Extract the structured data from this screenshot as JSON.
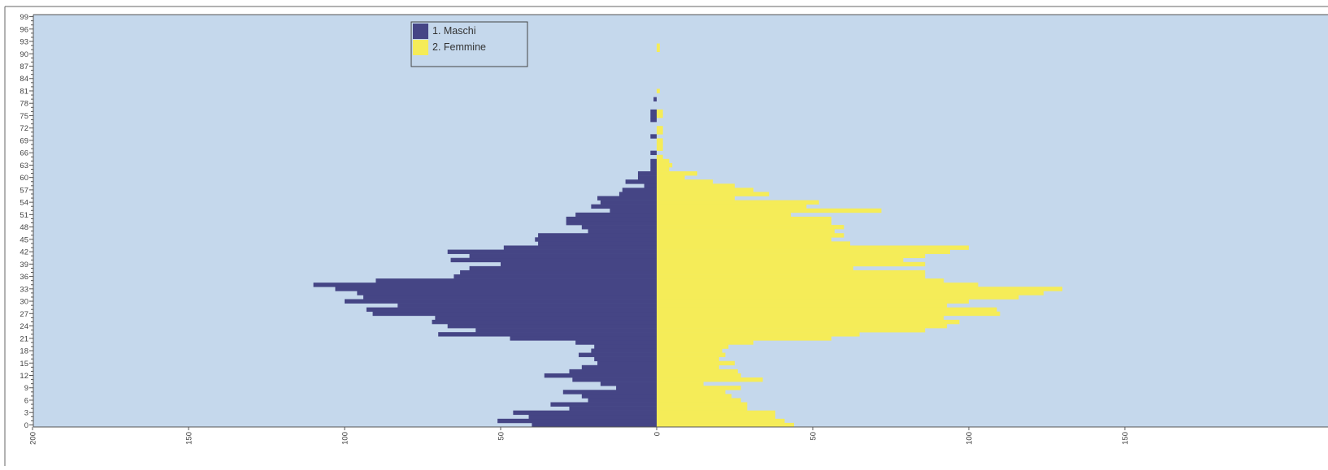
{
  "chart_data": {
    "type": "bar",
    "orientation": "horizontal",
    "layout": "population-pyramid",
    "title": "",
    "xlabel": "",
    "ylabel": "",
    "xlim": [
      -200,
      200
    ],
    "ylim": [
      0,
      100
    ],
    "grid": false,
    "legend_position": "top-left",
    "colors": {
      "plot_background": "#c5d8ec",
      "frame": "#555555",
      "males": "#454585",
      "females": "#f5ec58"
    },
    "x_ticks": [
      {
        "value": -200,
        "label": "200"
      },
      {
        "value": -150,
        "label": "150"
      },
      {
        "value": -100,
        "label": "100"
      },
      {
        "value": -50,
        "label": "50"
      },
      {
        "value": 0,
        "label": "0"
      },
      {
        "value": 50,
        "label": "50"
      },
      {
        "value": 100,
        "label": "100"
      },
      {
        "value": 150,
        "label": "150"
      }
    ],
    "y_ticks": [
      "0",
      "3",
      "6",
      "9",
      "12",
      "15",
      "18",
      "21",
      "24",
      "27",
      "30",
      "33",
      "36",
      "39",
      "42",
      "45",
      "48",
      "51",
      "54",
      "57",
      "60",
      "63",
      "66",
      "69",
      "72",
      "75",
      "78",
      "81",
      "84",
      "87",
      "90",
      "93",
      "96",
      "99"
    ],
    "ages": [
      0,
      1,
      2,
      3,
      4,
      5,
      6,
      7,
      8,
      9,
      10,
      11,
      12,
      13,
      14,
      15,
      16,
      17,
      18,
      19,
      20,
      21,
      22,
      23,
      24,
      25,
      26,
      27,
      28,
      29,
      30,
      31,
      32,
      33,
      34,
      35,
      36,
      37,
      38,
      39,
      40,
      41,
      42,
      43,
      44,
      45,
      46,
      47,
      48,
      49,
      50,
      51,
      52,
      53,
      54,
      55,
      56,
      57,
      58,
      59,
      60,
      61,
      62,
      63,
      64,
      65,
      66,
      67,
      68,
      69,
      70,
      71,
      72,
      73,
      74,
      75,
      76,
      77,
      78,
      79,
      80,
      81,
      82,
      83,
      84,
      85,
      86,
      87,
      88,
      89,
      90,
      91,
      92,
      93,
      94,
      95,
      96,
      97,
      98,
      99
    ],
    "series": [
      {
        "name": "1. Maschi",
        "values": [
          40,
          51,
          41,
          46,
          28,
          34,
          22,
          24,
          30,
          13,
          18,
          27,
          36,
          28,
          24,
          19,
          20,
          25,
          21,
          20,
          26,
          47,
          70,
          58,
          67,
          72,
          71,
          91,
          93,
          83,
          100,
          94,
          96,
          103,
          110,
          90,
          65,
          63,
          60,
          50,
          66,
          60,
          67,
          49,
          38,
          39,
          38,
          22,
          24,
          29,
          29,
          26,
          15,
          21,
          18,
          19,
          12,
          11,
          4,
          10,
          6,
          6,
          2,
          2,
          2,
          0,
          2,
          0,
          0,
          0,
          2,
          0,
          0,
          0,
          2,
          2,
          2,
          0,
          0,
          1,
          0,
          0,
          0,
          0,
          0,
          0,
          0,
          0,
          0,
          0,
          0,
          0,
          0,
          0,
          0,
          0,
          0,
          0,
          0,
          0
        ]
      },
      {
        "name": "2. Femmine",
        "values": [
          44,
          41,
          38,
          38,
          29,
          29,
          27,
          24,
          22,
          27,
          15,
          34,
          27,
          26,
          20,
          25,
          20,
          22,
          21,
          23,
          31,
          56,
          65,
          86,
          93,
          97,
          92,
          110,
          109,
          93,
          100,
          116,
          124,
          130,
          103,
          92,
          86,
          86,
          63,
          86,
          79,
          86,
          94,
          100,
          62,
          56,
          60,
          57,
          60,
          56,
          56,
          43,
          72,
          48,
          52,
          25,
          36,
          31,
          25,
          18,
          9,
          13,
          4,
          5,
          4,
          2,
          0,
          2,
          2,
          2,
          0,
          2,
          2,
          0,
          0,
          2,
          2,
          0,
          0,
          0,
          0,
          1,
          0,
          0,
          0,
          0,
          0,
          0,
          0,
          0,
          0,
          1,
          1,
          0,
          0,
          0,
          0,
          0,
          0,
          0
        ]
      }
    ]
  }
}
